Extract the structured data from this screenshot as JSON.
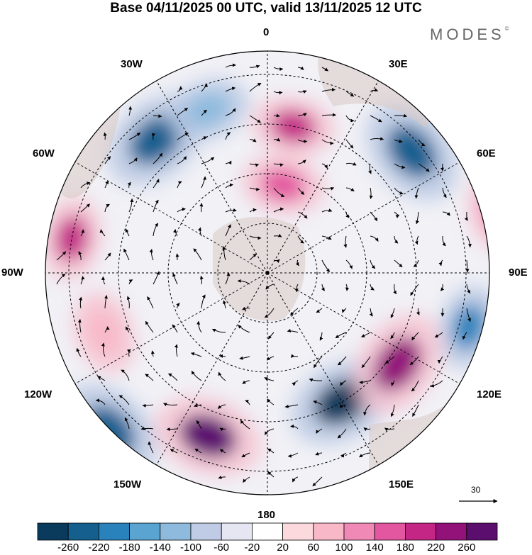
{
  "title": "Base 04/11/2025 00 UTC, valid 13/11/2025 12 UTC",
  "brand": "MODES",
  "brand_mark": "©",
  "longitudes": {
    "top": "0",
    "top_left": "30W",
    "top_right": "30E",
    "upper_left": "60W",
    "upper_right": "60E",
    "left": "90W",
    "right": "90E",
    "lower_left": "120W",
    "lower_right": "120E",
    "bottom_left": "150W",
    "bottom_right": "150E",
    "bottom": "180"
  },
  "vector_reference": "30",
  "colorbar": {
    "colors": [
      "#0a3a5c",
      "#155f8f",
      "#2a82bc",
      "#5aa4d1",
      "#8dbadd",
      "#c0cce6",
      "#e6e6f3",
      "#ffffff",
      "#fbd9dc",
      "#f8b8c8",
      "#f089b5",
      "#e2579f",
      "#c32685",
      "#93127a",
      "#5c0e6f"
    ],
    "ticks": [
      "-260",
      "-220",
      "-180",
      "-140",
      "-100",
      "-60",
      "-20",
      "20",
      "60",
      "100",
      "140",
      "180",
      "220",
      "260"
    ]
  },
  "anomaly_features": [
    {
      "sign": "negative",
      "color": "#155f8f",
      "at": "55N 40W"
    },
    {
      "sign": "negative",
      "color": "#155f8f",
      "at": "52N 50E"
    },
    {
      "sign": "negative",
      "color": "#2a82bc",
      "at": "48N 105E"
    },
    {
      "sign": "negative",
      "color": "#0a3a5c",
      "at": "60N 150E"
    },
    {
      "sign": "negative",
      "color": "#155f8f",
      "at": "45N 135W"
    },
    {
      "sign": "negative",
      "color": "#8dbadd",
      "at": "55N 20W"
    },
    {
      "sign": "positive",
      "color": "#c32685",
      "at": "60N 10E"
    },
    {
      "sign": "positive",
      "color": "#e2579f",
      "at": "72N 10E"
    },
    {
      "sign": "positive",
      "color": "#c32685",
      "at": "50N 80W"
    },
    {
      "sign": "positive",
      "color": "#5c0e6f",
      "at": "55N 160W"
    },
    {
      "sign": "positive",
      "color": "#93127a",
      "at": "58N 125E"
    },
    {
      "sign": "positive",
      "color": "#f089b5",
      "at": "42N 75E"
    },
    {
      "sign": "positive",
      "color": "#fbd9dc",
      "at": "30N 30E"
    },
    {
      "sign": "positive",
      "color": "#fbd9dc",
      "at": "35N 150E"
    },
    {
      "sign": "positive",
      "color": "#f8b8c8",
      "at": "55N 110W"
    }
  ]
}
